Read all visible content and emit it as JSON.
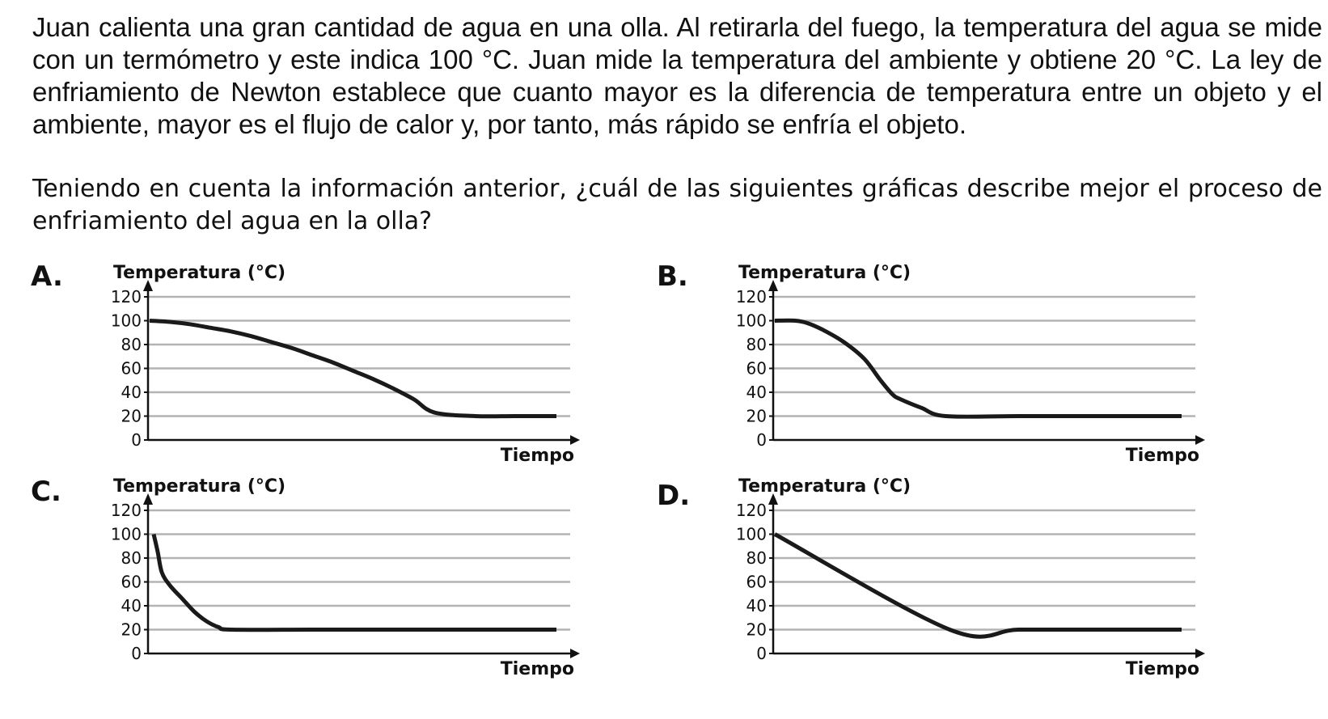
{
  "question": {
    "paragraph1": "Juan calienta una gran cantidad de agua en una olla. Al retirarla del fuego, la temperatura del agua se mide con un termómetro y este indica 100 °C. Juan mide la temperatura del ambiente y obtiene 20 °C. La ley de enfriamiento de Newton establece que cuanto mayor es la diferencia de temperatura entre un objeto y el ambiente, mayor es el flujo de calor y, por tanto, más rápido se enfría el objeto.",
    "paragraph2": "Teniendo en cuenta la información anterior, ¿cuál de las siguientes gráficas describe mejor el proceso de enfriamiento del agua en la olla?"
  },
  "colors": {
    "curve": "#1a1a1a",
    "gridline": "#b3b3b3",
    "axis": "#111111"
  },
  "chart_data": [
    {
      "option": "A.",
      "type": "line",
      "title": "Temperatura (°C)",
      "xlabel": "Tiempo",
      "ylim": [
        0,
        120
      ],
      "yticks": [
        "0",
        "20",
        "40",
        "60",
        "80",
        "100",
        "120"
      ],
      "grid": true,
      "series": [
        {
          "x": [
            0,
            0.05,
            0.1,
            0.15,
            0.2,
            0.25,
            0.3,
            0.35,
            0.4,
            0.45,
            0.5,
            0.55,
            0.6,
            0.65,
            0.7,
            0.8,
            0.9,
            1.0
          ],
          "y": [
            100,
            99,
            97,
            94,
            91,
            87,
            82,
            77,
            71,
            65,
            58,
            51,
            43,
            34,
            23,
            20,
            20,
            20
          ]
        }
      ]
    },
    {
      "option": "B.",
      "type": "line",
      "title": "Temperatura (°C)",
      "xlabel": "Tiempo",
      "ylim": [
        0,
        120
      ],
      "yticks": [
        "0",
        "20",
        "40",
        "60",
        "80",
        "100",
        "120"
      ],
      "grid": true,
      "series": [
        {
          "x": [
            0,
            0.05,
            0.08,
            0.12,
            0.17,
            0.22,
            0.26,
            0.29,
            0.31,
            0.36,
            0.42,
            0.6,
            0.8,
            1.0
          ],
          "y": [
            100,
            100,
            98,
            92,
            82,
            68,
            50,
            38,
            34,
            27,
            20,
            20,
            20,
            20
          ]
        }
      ]
    },
    {
      "option": "C.",
      "type": "line",
      "title": "Temperatura (°C)",
      "xlabel": "Tiempo",
      "ylim": [
        0,
        120
      ],
      "yticks": [
        "0",
        "20",
        "40",
        "60",
        "80",
        "100",
        "120"
      ],
      "grid": true,
      "series": [
        {
          "x": [
            0.01,
            0.02,
            0.03,
            0.05,
            0.08,
            0.11,
            0.14,
            0.17,
            0.2,
            0.4,
            0.6,
            0.8,
            1.0
          ],
          "y": [
            100,
            85,
            68,
            57,
            46,
            35,
            27,
            22,
            20,
            20,
            20,
            20,
            20
          ]
        }
      ]
    },
    {
      "option": "D.",
      "type": "line",
      "title": "Temperatura (°C)",
      "xlabel": "Tiempo",
      "ylim": [
        0,
        120
      ],
      "yticks": [
        "0",
        "20",
        "40",
        "60",
        "80",
        "100",
        "120"
      ],
      "grid": true,
      "series": [
        {
          "x": [
            0,
            0.43,
            0.6,
            0.8,
            1.0
          ],
          "y": [
            100,
            20,
            20,
            20,
            20
          ]
        }
      ]
    }
  ]
}
